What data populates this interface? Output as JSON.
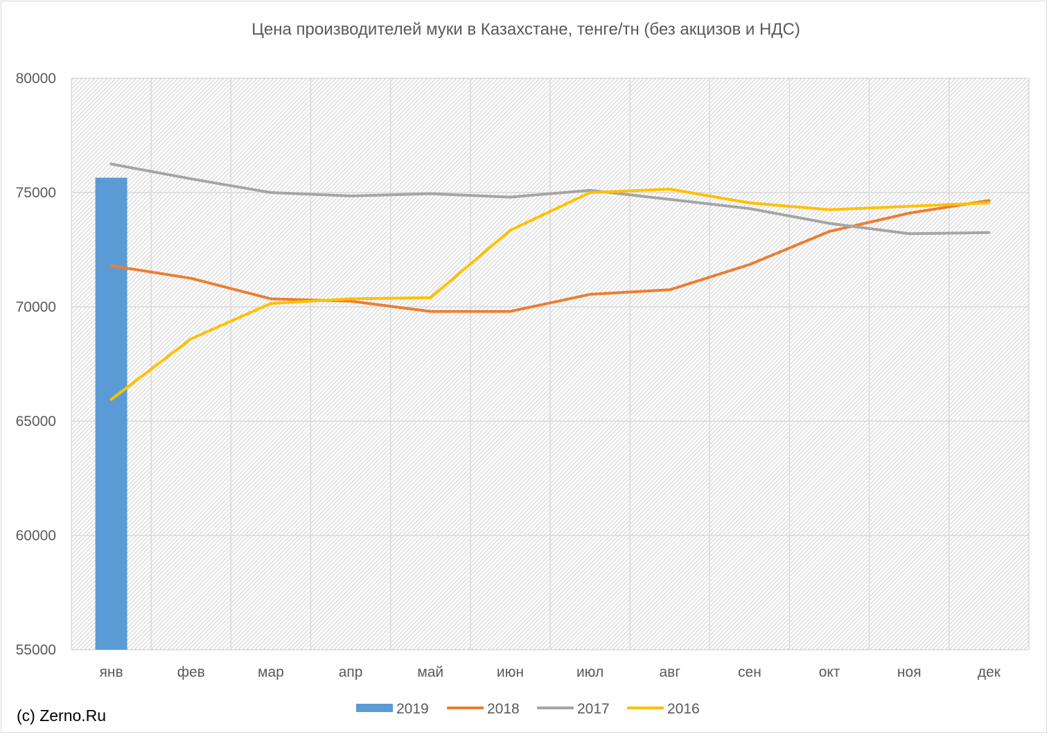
{
  "chart_data": {
    "type": "bar+line",
    "title": "Цена производителей муки в Казахстане, тенге/тн (без акцизов и НДС)",
    "categories": [
      "янв",
      "фев",
      "мар",
      "апр",
      "май",
      "июн",
      "июл",
      "авг",
      "сен",
      "окт",
      "ноя",
      "дек"
    ],
    "ylim": [
      55000,
      80000
    ],
    "yticks": [
      80000,
      75000,
      70000,
      65000,
      60000,
      55000
    ],
    "grid": true,
    "legend_position": "bottom",
    "series": [
      {
        "name": "2019",
        "type": "bar",
        "color": "#5b9bd5",
        "values": [
          75650,
          null,
          null,
          null,
          null,
          null,
          null,
          null,
          null,
          null,
          null,
          null
        ]
      },
      {
        "name": "2018",
        "type": "line",
        "color": "#ed7d31",
        "values": [
          71800,
          71250,
          70350,
          70250,
          69800,
          69800,
          70550,
          70750,
          71850,
          73300,
          74100,
          74650
        ]
      },
      {
        "name": "2017",
        "type": "line",
        "color": "#a5a5a5",
        "values": [
          76250,
          75600,
          75000,
          74850,
          74950,
          74800,
          75100,
          74700,
          74300,
          73650,
          73200,
          73250
        ]
      },
      {
        "name": "2016",
        "type": "line",
        "color": "#ffc000",
        "values": [
          65950,
          68600,
          70150,
          70350,
          70400,
          73350,
          75000,
          75150,
          74550,
          74250,
          74400,
          74550
        ]
      }
    ]
  },
  "footer": {
    "copyright": "(c) Zerno.Ru"
  }
}
